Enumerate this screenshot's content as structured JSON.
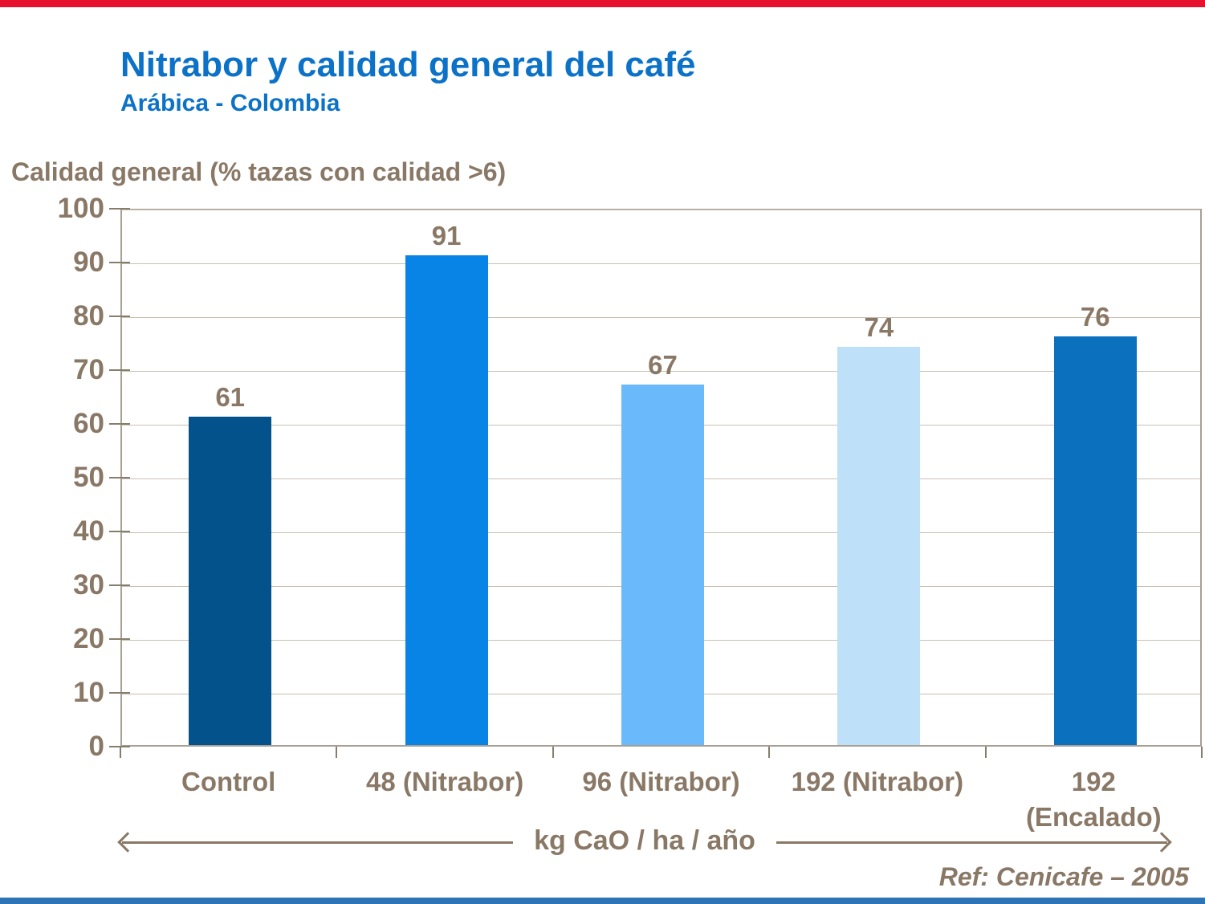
{
  "page": {
    "title": "Nitrabor y calidad general del café",
    "subtitle": "Arábica - Colombia",
    "footnote": "Ref: Cenicafe – 2005"
  },
  "colors": {
    "title_blue": "#0B72C8",
    "text_brown": "#8A7866",
    "grid": "#C9BFB1",
    "plot_border": "#A9A094",
    "top_bar_red": "#E8112D",
    "bottom_bar_blue": "#2E74B5"
  },
  "chart_data": {
    "type": "bar",
    "title": "Nitrabor y calidad general del café",
    "subtitle": "Arábica - Colombia",
    "ylabel": "Calidad general (% tazas con calidad >6)",
    "xlabel": "kg CaO / ha / año",
    "categories": [
      "Control",
      "48 (Nitrabor)",
      "96 (Nitrabor)",
      "192 (Nitrabor)",
      "192\n(Encalado)"
    ],
    "values": [
      61,
      91,
      67,
      74,
      76
    ],
    "bar_colors": [
      "#04528C",
      "#0884E6",
      "#6ABAFB",
      "#BFE0F9",
      "#0B70BE"
    ],
    "ylim": [
      0,
      100
    ],
    "ytick_step": 10,
    "grid": true,
    "legend": "none",
    "value_labels": true
  }
}
